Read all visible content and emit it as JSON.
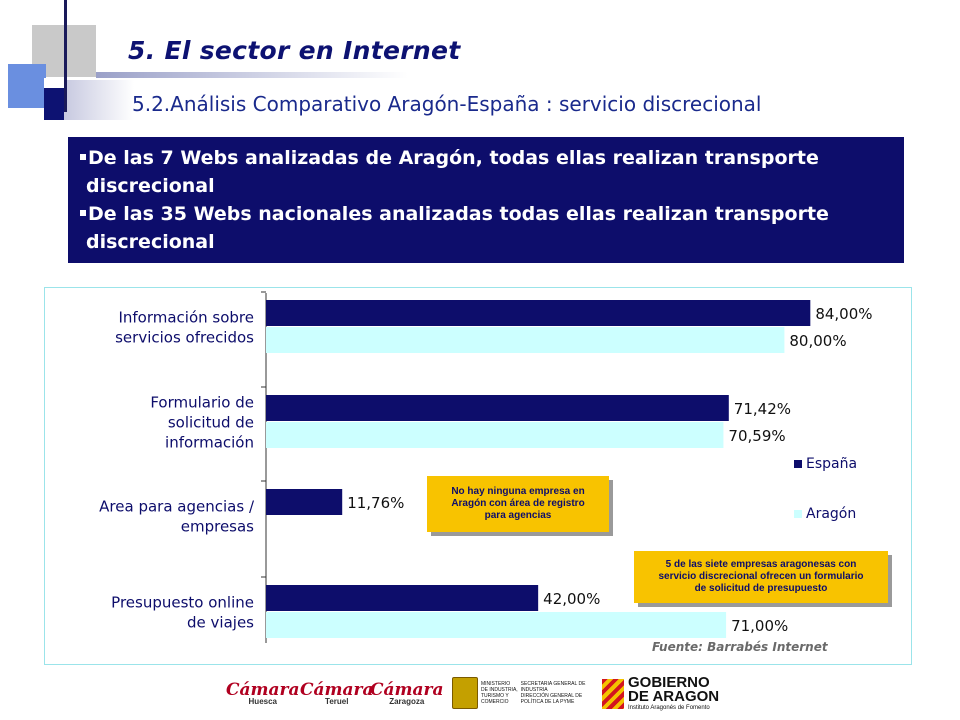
{
  "header": {
    "title": "5. El  sector en Internet",
    "subtitle": "5.2.Análisis Comparativo Aragón-España : servicio discrecional"
  },
  "info": {
    "items": [
      {
        "line1": "De las 7 Webs analizadas de Aragón, todas ellas realizan transporte",
        "line2": "discrecional"
      },
      {
        "line1": "De las 35 Webs nacionales analizadas todas ellas realizan transporte",
        "line2": "discrecional"
      }
    ]
  },
  "chart_data": {
    "type": "bar",
    "orientation": "horizontal",
    "categories": [
      [
        "Información sobre",
        "servicios ofrecidos"
      ],
      [
        "Formulario de",
        "solicitud de",
        "información"
      ],
      [
        "Area para agencias /",
        "empresas"
      ],
      [
        "Presupuesto online",
        "de viajes"
      ]
    ],
    "series": [
      {
        "name": "España",
        "color": "#0d0d6b",
        "values": [
          84.0,
          71.42,
          11.76,
          42.0
        ],
        "labels": [
          "84,00%",
          "71,42%",
          "11,76%",
          "42,00%"
        ]
      },
      {
        "name": "Aragón",
        "color": "#ccffff",
        "values": [
          80.0,
          70.59,
          0,
          71.0
        ],
        "labels": [
          "80,00%",
          "70,59%",
          "",
          "71,00%"
        ]
      }
    ],
    "xlim": [
      0,
      100
    ],
    "grid": false,
    "legend": "right"
  },
  "callouts": {
    "no_agencias": [
      "No hay ninguna empresa en",
      "Aragón con  área de registro",
      "para agencias"
    ],
    "presupuesto": [
      "5 de las siete empresas aragonesas con",
      "servicio discrecional ofrecen un formulario",
      "de solicitud de presupuesto"
    ]
  },
  "source": "Fuente: Barrabés Internet",
  "footer": {
    "camara_brand": "Cámara",
    "camara_cities": [
      "Huesca",
      "Teruel",
      "Zaragoza"
    ],
    "ministerio_lines_left": [
      "MINISTERIO",
      "DE INDUSTRIA,",
      "TURISMO Y",
      "COMERCIO"
    ],
    "ministerio_lines_right": [
      "SECRETARIA GENERAL DE",
      "INDUSTRIA",
      "DIRECCIÓN GENERAL DE",
      "POLÍTICA DE LA PYME"
    ],
    "gobierno_line1": "GOBIERNO",
    "gobierno_line2": "DE ARAGON",
    "gobierno_sub": "Instituto Aragonés de Fomento"
  }
}
